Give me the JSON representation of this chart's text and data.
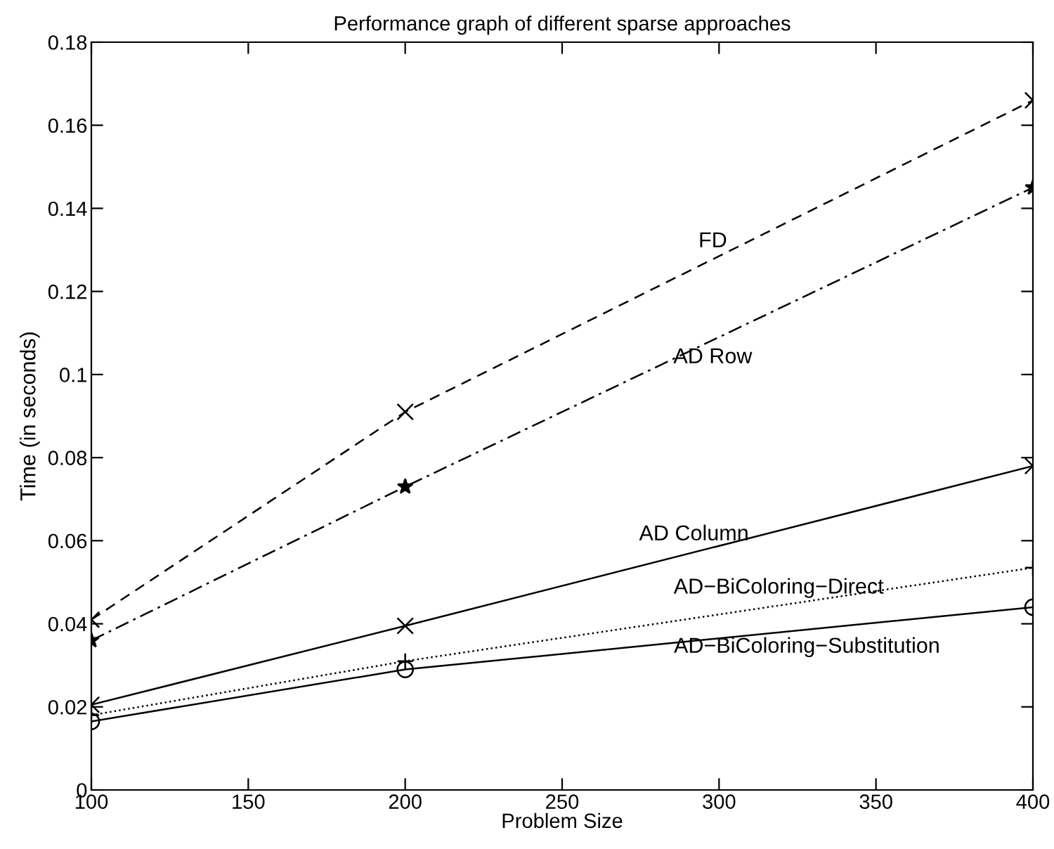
{
  "chart_data": {
    "type": "line",
    "title": "Performance graph of different sparse approaches",
    "xlabel": "Problem Size",
    "ylabel": "Time (in seconds)",
    "x": [
      100,
      200,
      400
    ],
    "series": [
      {
        "name": "FD",
        "color": "#000000",
        "values": [
          0.041,
          0.091,
          0.166
        ],
        "marker": "cross",
        "line_style": "dashed"
      },
      {
        "name": "AD Row",
        "color": "#000000",
        "values": [
          0.036,
          0.073,
          0.145
        ],
        "marker": "star",
        "line_style": "dashdot"
      },
      {
        "name": "AD Column",
        "color": "#000000",
        "values": [
          0.0205,
          0.0395,
          0.078
        ],
        "marker": "cross",
        "line_style": "solid"
      },
      {
        "name": "AD−BiColoring−Direct",
        "color": "#000000",
        "values": [
          0.018,
          0.031,
          0.0535
        ],
        "marker": "plus",
        "line_style": "dotted"
      },
      {
        "name": "AD−BiColoring−Substitution",
        "color": "#000000",
        "values": [
          0.0165,
          0.029,
          0.044
        ],
        "marker": "circle",
        "line_style": "solid"
      }
    ],
    "xlim": [
      100,
      400
    ],
    "xticks": [
      100,
      150,
      200,
      250,
      300,
      350,
      400
    ],
    "ylim": [
      0,
      0.18
    ],
    "yticks": [
      0,
      0.02,
      0.04,
      0.06,
      0.08,
      0.1,
      0.12,
      0.14,
      0.16,
      0.18
    ],
    "grid": false,
    "legend": false
  }
}
